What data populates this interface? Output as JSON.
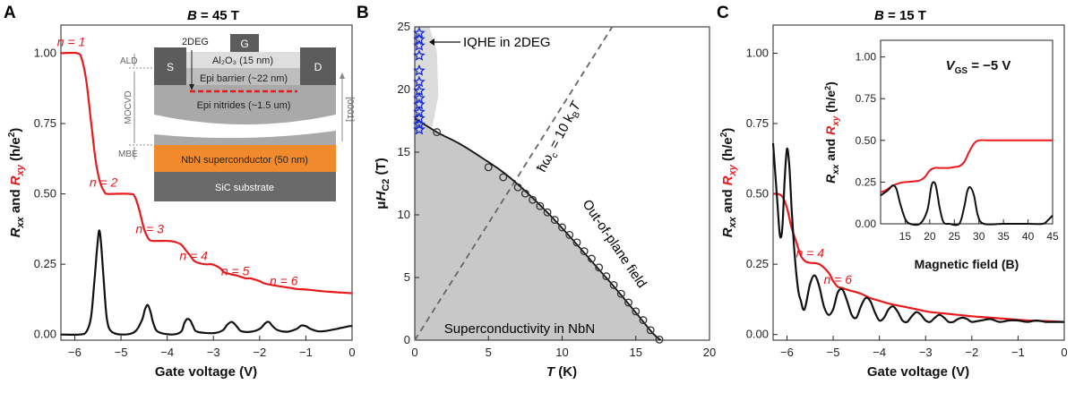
{
  "chart_data": [
    {
      "panel": "A",
      "type": "line",
      "title": "B = 45 T",
      "title_parts": [
        "B",
        " = 45 T"
      ],
      "xlabel": "Gate voltage (V)",
      "ylabel_parts": [
        "R",
        "xx",
        " and ",
        "R",
        "xy",
        " (h/e",
        "2",
        ")"
      ],
      "xlim": [
        -6.3,
        0
      ],
      "ylim": [
        -0.02,
        1.1
      ],
      "xticks": [
        -6,
        -5,
        -4,
        -3,
        -2,
        -1,
        0
      ],
      "yticks": [
        0.0,
        0.25,
        0.5,
        0.75,
        1.0
      ],
      "ytick_labels": [
        "0.00",
        "0.25",
        "0.50",
        "0.75",
        "1.00"
      ],
      "series": [
        {
          "color": "#e8191c",
          "x": [
            -6.3,
            -5.95,
            -5.85,
            -5.75,
            -5.65,
            -5.55,
            -5.45,
            -5.35,
            -5.3,
            -5.2,
            -4.8,
            -4.7,
            -4.6,
            -4.5,
            -4.4,
            -4.3,
            -4.0,
            -3.85,
            -3.7,
            -3.6,
            -3.5,
            -3.4,
            -3.2,
            -3.05,
            -2.95,
            -2.85,
            -2.75,
            -2.5,
            -2.3,
            -2.2,
            -2.1,
            -2.0,
            -1.9,
            -1.7,
            -1.5,
            -1.4,
            -1.3,
            -1.2,
            -1.0,
            -0.7,
            -0.5,
            -0.3,
            -0.1,
            0.0
          ],
          "y": [
            1.0,
            1.0,
            0.98,
            0.9,
            0.76,
            0.62,
            0.54,
            0.505,
            0.5,
            0.5,
            0.5,
            0.49,
            0.44,
            0.375,
            0.34,
            0.333,
            0.333,
            0.33,
            0.32,
            0.3,
            0.28,
            0.26,
            0.25,
            0.25,
            0.245,
            0.235,
            0.22,
            0.21,
            0.2,
            0.2,
            0.195,
            0.19,
            0.182,
            0.175,
            0.17,
            0.167,
            0.165,
            0.162,
            0.16,
            0.155,
            0.152,
            0.15,
            0.148,
            0.147
          ]
        },
        {
          "color": "#111111",
          "x": [
            -6.3,
            -5.9,
            -5.75,
            -5.65,
            -5.58,
            -5.52,
            -5.47,
            -5.42,
            -5.36,
            -5.3,
            -5.2,
            -4.95,
            -4.7,
            -4.55,
            -4.48,
            -4.42,
            -4.36,
            -4.3,
            -4.2,
            -3.9,
            -3.7,
            -3.63,
            -3.57,
            -3.5,
            -3.44,
            -3.35,
            -3.0,
            -2.8,
            -2.7,
            -2.6,
            -2.5,
            -2.4,
            -2.2,
            -2.0,
            -1.88,
            -1.8,
            -1.72,
            -1.6,
            -1.4,
            -1.2,
            -1.1,
            -1.0,
            -0.9,
            -0.75,
            -0.6,
            -0.4,
            -0.2,
            -0.05,
            0.0
          ],
          "y": [
            0.0,
            0.0,
            0.01,
            0.06,
            0.18,
            0.3,
            0.37,
            0.3,
            0.16,
            0.05,
            0.01,
            0.0,
            0.01,
            0.05,
            0.09,
            0.105,
            0.08,
            0.04,
            0.01,
            0.0,
            0.01,
            0.04,
            0.055,
            0.05,
            0.03,
            0.01,
            0.005,
            0.015,
            0.035,
            0.045,
            0.03,
            0.012,
            0.01,
            0.02,
            0.04,
            0.045,
            0.03,
            0.015,
            0.01,
            0.02,
            0.032,
            0.03,
            0.02,
            0.012,
            0.012,
            0.018,
            0.025,
            0.03,
            0.03
          ]
        }
      ],
      "annotations": [
        {
          "text": "n = 1",
          "x": -6.0,
          "y": 1.025
        },
        {
          "text": "n = 2",
          "x": -5.3,
          "y": 0.525
        },
        {
          "text": "n = 3",
          "x": -4.3,
          "y": 0.36
        },
        {
          "text": "n = 4",
          "x": -3.35,
          "y": 0.265
        },
        {
          "text": "n = 5",
          "x": -2.45,
          "y": 0.21
        },
        {
          "text": "n = 6",
          "x": -1.4,
          "y": 0.175
        }
      ],
      "inset": {
        "labels": {
          "twodeg": "2DEG",
          "gate": "G",
          "source": "S",
          "drain": "D",
          "ald": "ALD",
          "mocvd": "MOCVD",
          "mbe": "MBE",
          "direction": "[0001]",
          "al2o3": "Al₂O₃ (15 nm)",
          "barrier": "Epi barrier (~22 nm)",
          "nitrides": "Epi nitrides (~1.5 um)",
          "nbn": "NbN superconductor (50 nm)",
          "sic": "SiC substrate"
        },
        "colors": {
          "contact": "#5c5c5c",
          "oxide": "#dedede",
          "barrier": "#bdbdbd",
          "nitrides": "#a9a9a9",
          "nbn": "#f08a2c",
          "sic": "#6a6a6a",
          "twodeg": "#e8191c"
        }
      }
    },
    {
      "panel": "B",
      "type": "line",
      "xlabel_parts": [
        "T",
        " (K)"
      ],
      "ylabel_parts": [
        "μ",
        "H",
        "C2",
        " (T)"
      ],
      "xlim": [
        0,
        20
      ],
      "ylim": [
        0,
        25
      ],
      "xticks": [
        0,
        5,
        10,
        15,
        20
      ],
      "yticks": [
        0,
        5,
        10,
        15,
        20,
        25
      ],
      "hc2_curve": {
        "x": [
          0,
          1.5,
          3,
          4.5,
          6,
          7.5,
          9,
          10.5,
          12,
          13.5,
          15,
          16.2,
          16.7
        ],
        "y": [
          17.7,
          16.6,
          15.7,
          14.6,
          13.4,
          11.9,
          10.2,
          8.3,
          6.3,
          4.3,
          2.2,
          0.5,
          0.0
        ]
      },
      "hc2_points": {
        "x": [
          1.5,
          5.0,
          6.0,
          7.0,
          7.5,
          8.0,
          8.5,
          9.0,
          9.5,
          10.0,
          10.5,
          11.0,
          11.5,
          12.0,
          12.5,
          13.0,
          13.5,
          14.0,
          14.5,
          15.0,
          15.5,
          16.0,
          16.6
        ],
        "y": [
          16.6,
          13.8,
          13.0,
          12.2,
          11.7,
          11.2,
          10.7,
          10.2,
          9.6,
          9.0,
          8.4,
          7.8,
          7.1,
          6.5,
          5.8,
          5.1,
          4.4,
          3.7,
          3.0,
          2.3,
          1.6,
          0.8,
          0.05
        ]
      },
      "iqhe_points": {
        "x": [
          0.3,
          0.3,
          0.3,
          0.3,
          0.3,
          0.3,
          0.3,
          0.3,
          0.3,
          0.3,
          0.3,
          0.3,
          0.3
        ],
        "y": [
          24.5,
          24.0,
          23.5,
          22.7,
          21.5,
          20.6,
          19.9,
          19.3,
          18.8,
          18.2,
          17.7,
          17.2,
          16.8
        ]
      },
      "cyclotron_line": {
        "x": [
          0,
          13.4
        ],
        "y": [
          0,
          25
        ]
      },
      "labels": {
        "iqhe": "IQHE in 2DEG",
        "cyclotron_parts": [
          "ħω",
          "c",
          " = 10 k",
          "B",
          "T"
        ],
        "oop": "Out-of-plane field",
        "sc": "Superconductivity in NbN"
      }
    },
    {
      "panel": "C",
      "type": "line",
      "title": "B = 15 T",
      "title_parts": [
        "B",
        " = 15 T"
      ],
      "xlabel": "Gate voltage (V)",
      "ylabel_parts": [
        "R",
        "xx",
        " and ",
        "R",
        "xy",
        " (h/e",
        "2",
        ")"
      ],
      "xlim": [
        -6.3,
        0
      ],
      "ylim": [
        -0.02,
        1.1
      ],
      "xticks": [
        -6,
        -5,
        -4,
        -3,
        -2,
        -1,
        0
      ],
      "yticks": [
        0.0,
        0.25,
        0.5,
        0.75,
        1.0
      ],
      "ytick_labels": [
        "0.00",
        "0.25",
        "0.50",
        "0.75",
        "1.00"
      ],
      "series": [
        {
          "color": "#e8191c",
          "x": [
            -6.3,
            -6.2,
            -6.1,
            -6.0,
            -5.9,
            -5.8,
            -5.7,
            -5.6,
            -5.5,
            -5.3,
            -5.1,
            -5.0,
            -4.9,
            -4.8,
            -4.6,
            -4.4,
            -4.2,
            -4.0,
            -3.8,
            -3.5,
            -3.2,
            -2.9,
            -2.6,
            -2.3,
            -2.0,
            -1.6,
            -1.2,
            -0.8,
            -0.4,
            0.0
          ],
          "y": [
            0.5,
            0.5,
            0.49,
            0.45,
            0.38,
            0.33,
            0.28,
            0.26,
            0.255,
            0.25,
            0.22,
            0.19,
            0.17,
            0.165,
            0.155,
            0.145,
            0.13,
            0.12,
            0.11,
            0.1,
            0.09,
            0.08,
            0.075,
            0.07,
            0.065,
            0.06,
            0.055,
            0.05,
            0.048,
            0.045
          ]
        },
        {
          "color": "#111111",
          "x": [
            -6.3,
            -6.2,
            -6.15,
            -6.1,
            -6.05,
            -6.0,
            -5.95,
            -5.9,
            -5.85,
            -5.8,
            -5.75,
            -5.7,
            -5.65,
            -5.6,
            -5.5,
            -5.4,
            -5.3,
            -5.2,
            -5.1,
            -5.0,
            -4.9,
            -4.8,
            -4.7,
            -4.6,
            -4.5,
            -4.4,
            -4.3,
            -4.2,
            -4.1,
            -4.0,
            -3.9,
            -3.8,
            -3.7,
            -3.6,
            -3.5,
            -3.4,
            -3.3,
            -3.2,
            -3.1,
            -3.0,
            -2.9,
            -2.8,
            -2.7,
            -2.6,
            -2.5,
            -2.4,
            -2.3,
            -2.2,
            -2.1,
            -2.0,
            -1.8,
            -1.6,
            -1.4,
            -1.2,
            -1.0,
            -0.8,
            -0.6,
            -0.4,
            -0.2,
            0.0
          ],
          "y": [
            0.68,
            0.45,
            0.35,
            0.38,
            0.55,
            0.66,
            0.6,
            0.45,
            0.32,
            0.22,
            0.15,
            0.12,
            0.09,
            0.1,
            0.18,
            0.21,
            0.17,
            0.1,
            0.07,
            0.09,
            0.15,
            0.16,
            0.12,
            0.07,
            0.06,
            0.1,
            0.13,
            0.12,
            0.08,
            0.05,
            0.06,
            0.09,
            0.1,
            0.08,
            0.05,
            0.045,
            0.065,
            0.08,
            0.07,
            0.05,
            0.045,
            0.06,
            0.07,
            0.06,
            0.045,
            0.045,
            0.055,
            0.06,
            0.055,
            0.045,
            0.05,
            0.055,
            0.045,
            0.05,
            0.05,
            0.045,
            0.05,
            0.045,
            0.045,
            0.045
          ]
        }
      ],
      "annotations": [
        {
          "text": "n = 4",
          "x": -5.5,
          "y": 0.275
        },
        {
          "text": "n = 6",
          "x": -4.9,
          "y": 0.18
        }
      ],
      "inset": {
        "xlabel": "Magnetic field (B)",
        "ylabel_parts": [
          "R",
          "xx",
          " and ",
          "R",
          "xy",
          " (h/e",
          "2",
          ")"
        ],
        "label_parts": [
          "V",
          "GS",
          " = −5 V"
        ],
        "xlim": [
          10,
          45
        ],
        "ylim": [
          0,
          1.1
        ],
        "xticks": [
          15,
          20,
          25,
          30,
          35,
          40,
          45
        ],
        "yticks": [
          0.0,
          0.25,
          0.5,
          0.75,
          1.0
        ],
        "ytick_labels": [
          "0.00",
          "0.25",
          "0.50",
          "0.75",
          "1.00"
        ],
        "series": [
          {
            "color": "#e8191c",
            "x": [
              10,
              11,
              12,
              13,
              14,
              15,
              16,
              17,
              18,
              19,
              20,
              21,
              22,
              23,
              24,
              25,
              26,
              27,
              28,
              29,
              30,
              32,
              35,
              40,
              45
            ],
            "y": [
              0.19,
              0.2,
              0.22,
              0.235,
              0.245,
              0.25,
              0.252,
              0.255,
              0.26,
              0.28,
              0.32,
              0.335,
              0.335,
              0.335,
              0.335,
              0.34,
              0.345,
              0.37,
              0.43,
              0.48,
              0.5,
              0.5,
              0.5,
              0.5,
              0.5
            ]
          },
          {
            "color": "#111111",
            "x": [
              10,
              11,
              11.8,
              12.5,
              13.2,
              14,
              15,
              16,
              18,
              19.5,
              20.3,
              20.8,
              21.3,
              22,
              22.8,
              24,
              26,
              27,
              27.6,
              28.2,
              29,
              29.8,
              31,
              35,
              40,
              43,
              44,
              45
            ],
            "y": [
              0.17,
              0.19,
              0.21,
              0.23,
              0.21,
              0.12,
              0.03,
              0.0,
              0.0,
              0.08,
              0.22,
              0.25,
              0.22,
              0.1,
              0.01,
              0.0,
              0.0,
              0.1,
              0.19,
              0.22,
              0.17,
              0.05,
              0.0,
              0.0,
              0.0,
              0.0,
              0.02,
              0.05
            ]
          }
        ]
      }
    }
  ],
  "panel_letters": [
    "A",
    "B",
    "C"
  ]
}
